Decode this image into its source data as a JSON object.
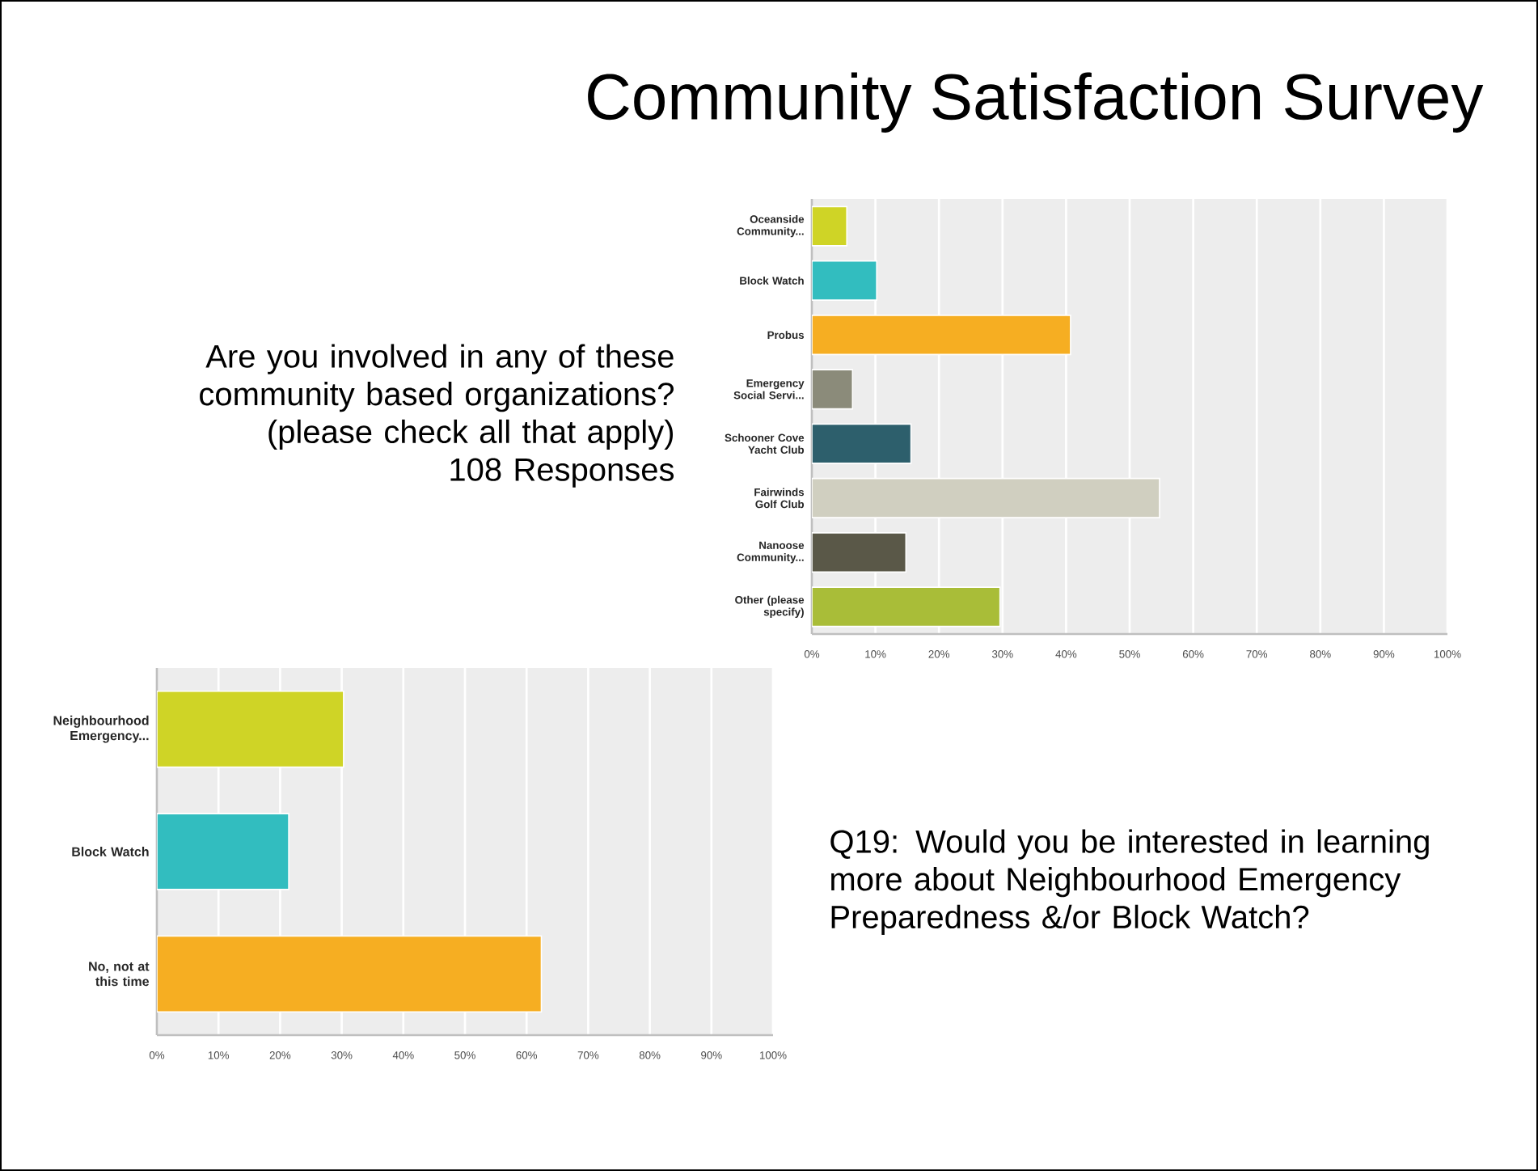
{
  "chart_data": [
    {
      "type": "bar",
      "orientation": "horizontal",
      "title": "Community Satisfaction Survey",
      "annotations": [
        "Are you involved in any of these community based organizations? (please check all that apply)",
        "108 Responses"
      ],
      "categories": [
        "Oceanside Community...",
        "Block Watch",
        "Probus",
        "Emergency Social Servi...",
        "Schooner Cove Yacht Club",
        "Fairwinds Golf Club",
        "Nanoose Community...",
        "Other (please specify)"
      ],
      "values": [
        5.5,
        10.2,
        40.7,
        6.4,
        15.6,
        54.7,
        14.8,
        29.6
      ],
      "colors": [
        "#cfd426",
        "#32bdbf",
        "#f6ae22",
        "#8b8b7a",
        "#2d5f6c",
        "#d0cfc0",
        "#5a5848",
        "#a9bd38"
      ],
      "xlim": [
        0,
        100
      ],
      "xticks": [
        {
          "value": 0,
          "label": "0%"
        },
        {
          "value": 10,
          "label": "10%"
        },
        {
          "value": 20,
          "label": "20%"
        },
        {
          "value": 30,
          "label": "30%"
        },
        {
          "value": 40,
          "label": "40%"
        },
        {
          "value": 50,
          "label": "50%"
        },
        {
          "value": 60,
          "label": "60%"
        },
        {
          "value": 70,
          "label": "70%"
        },
        {
          "value": 80,
          "label": "80%"
        },
        {
          "value": 90,
          "label": "90%"
        },
        {
          "value": 100,
          "label": "100%"
        }
      ],
      "grid": "x"
    },
    {
      "type": "bar",
      "orientation": "horizontal",
      "annotations": [
        "Q19: Would you be interested in learning more about Neighbourhood Emergency Preparedness &/or Block Watch?"
      ],
      "categories": [
        "Neighbourhood Emergency...",
        "Block Watch",
        "No, not at this time"
      ],
      "values": [
        30.3,
        21.4,
        62.4
      ],
      "colors": [
        "#cfd426",
        "#32bdbf",
        "#f6ae22"
      ],
      "xlim": [
        0,
        100
      ],
      "xticks": [
        {
          "value": 0,
          "label": "0%"
        },
        {
          "value": 10,
          "label": "10%"
        },
        {
          "value": 20,
          "label": "20%"
        },
        {
          "value": 30,
          "label": "30%"
        },
        {
          "value": 40,
          "label": "40%"
        },
        {
          "value": 50,
          "label": "50%"
        },
        {
          "value": 60,
          "label": "60%"
        },
        {
          "value": 70,
          "label": "70%"
        },
        {
          "value": 80,
          "label": "80%"
        },
        {
          "value": 90,
          "label": "90%"
        },
        {
          "value": 100,
          "label": "100%"
        }
      ],
      "grid": "x"
    }
  ]
}
